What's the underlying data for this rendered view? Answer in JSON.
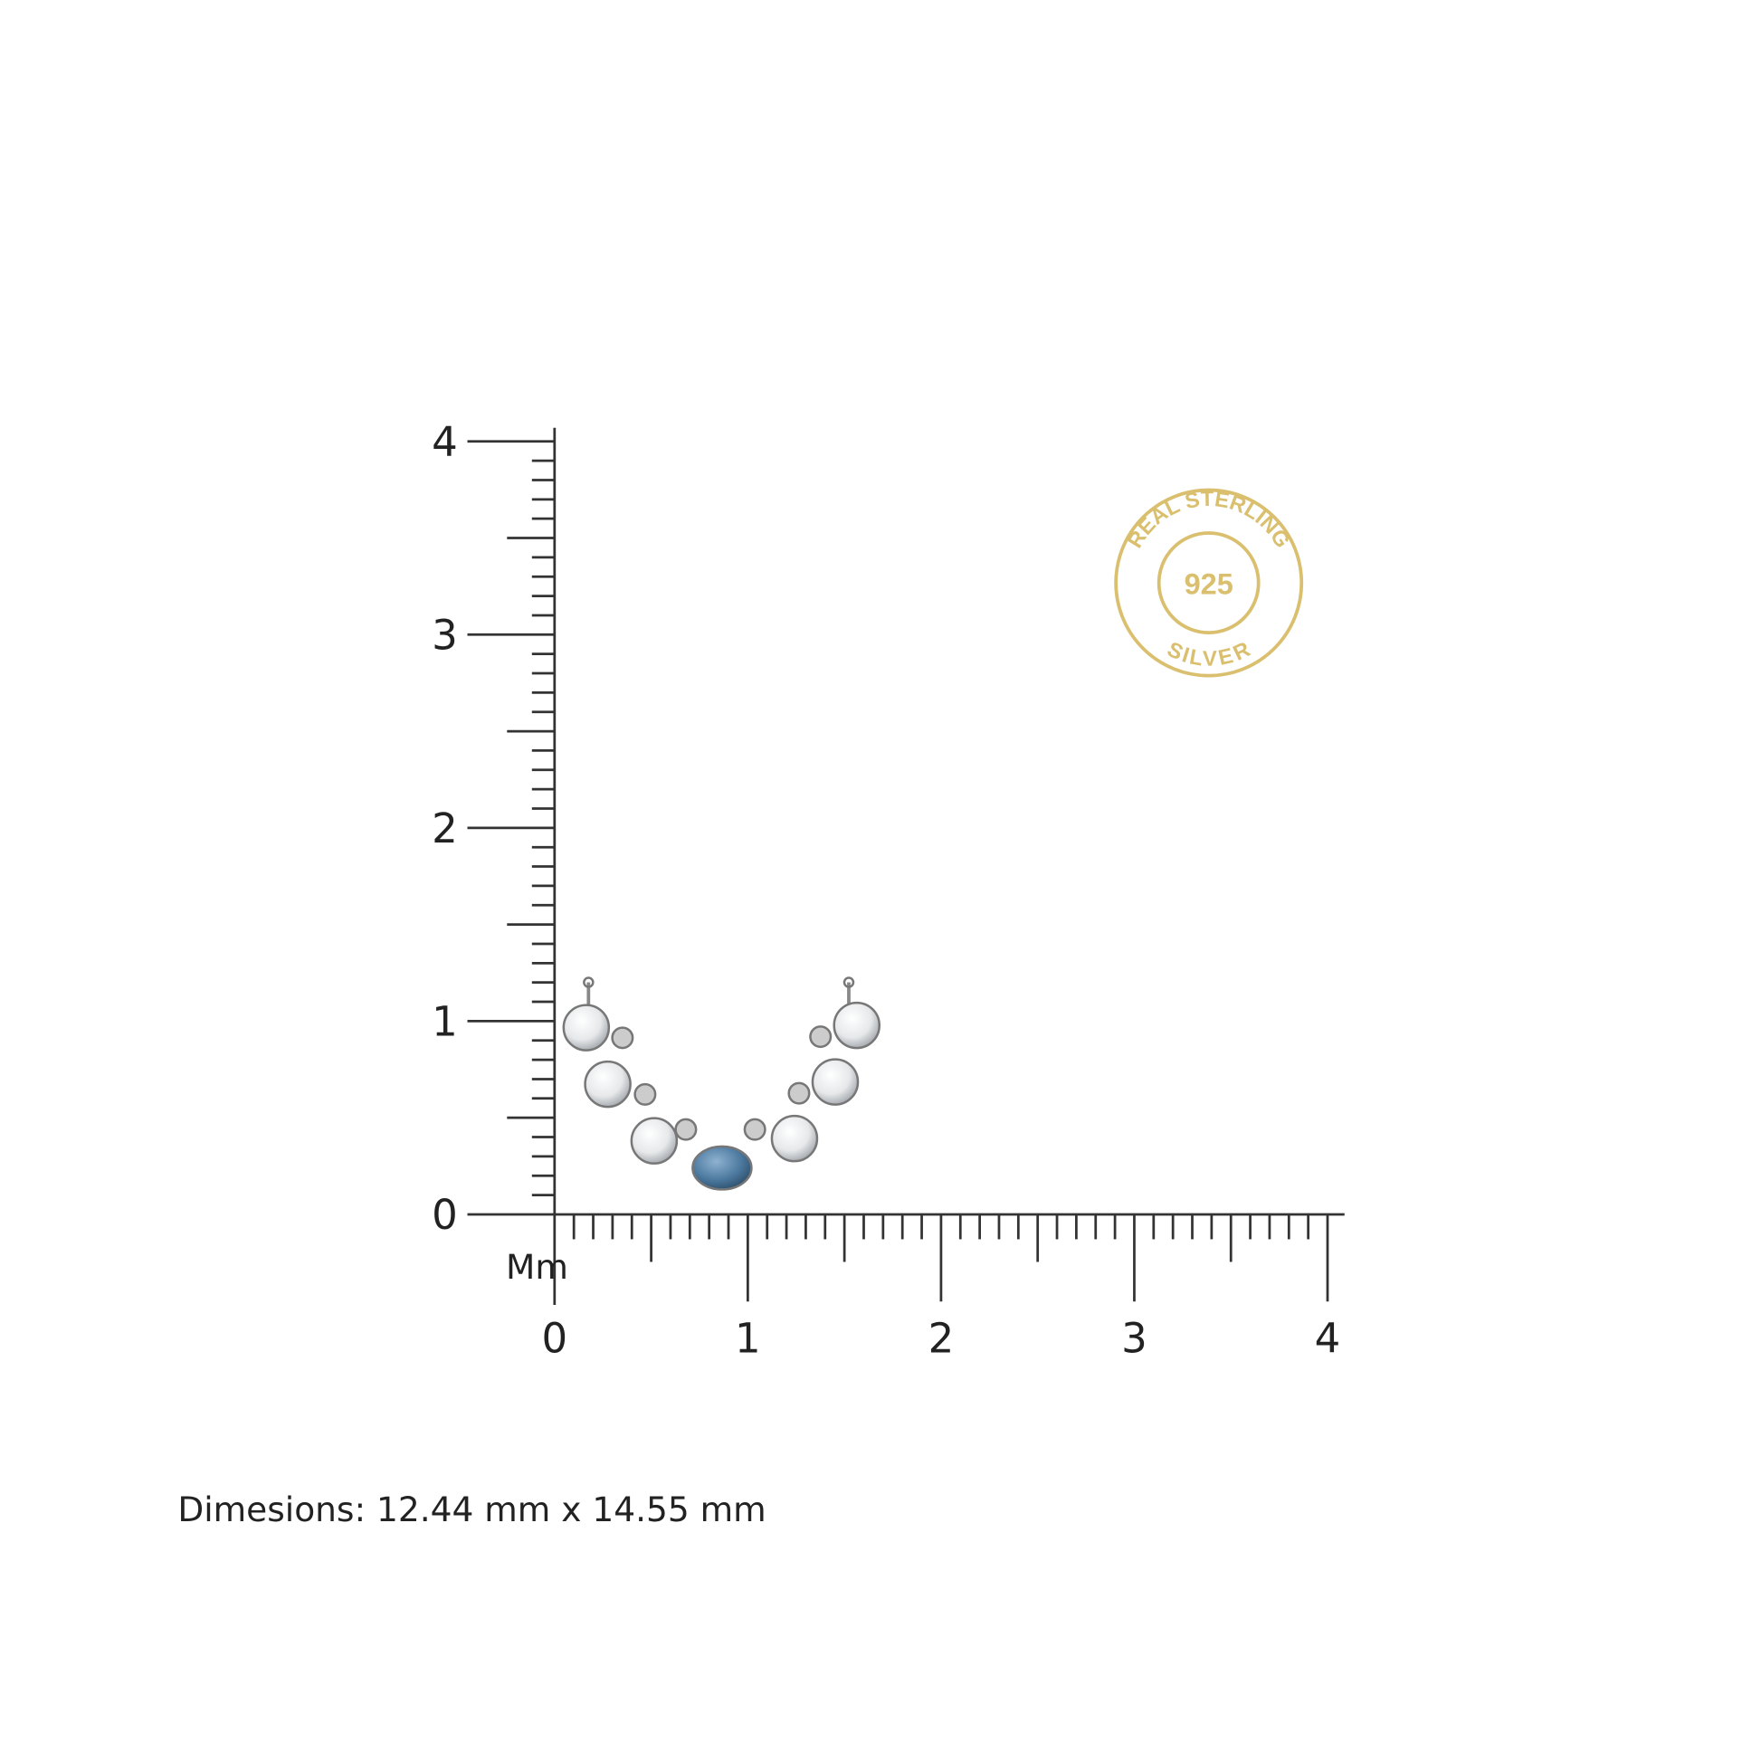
{
  "ruler": {
    "unit": "Mm",
    "y_labels": [
      0,
      1,
      2,
      3,
      4
    ],
    "x_labels": [
      0,
      1,
      2,
      3,
      4
    ]
  },
  "badge": {
    "top_text": "REAL STERLING",
    "center_text": "925",
    "bottom_text": "SILVER"
  },
  "caption": "Dimesions: 12.44 mm x 14.55 mm"
}
